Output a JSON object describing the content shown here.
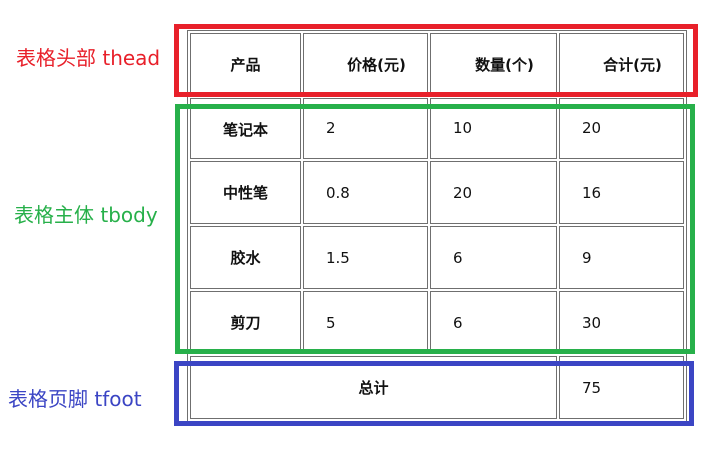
{
  "labels": {
    "thead": "表格头部 thead",
    "tbody": "表格主体 tbody",
    "tfoot": "表格页脚 tfoot"
  },
  "colors": {
    "thead": "#e8202a",
    "tbody": "#27b04a",
    "tfoot": "#3b45c4"
  },
  "table": {
    "headers": [
      "产品",
      "价格(元)",
      "数量(个)",
      "合计(元)"
    ],
    "rows": [
      [
        "笔记本",
        "2",
        "10",
        "20"
      ],
      [
        "中性笔",
        "0.8",
        "20",
        "16"
      ],
      [
        "胶水",
        "1.5",
        "6",
        "9"
      ],
      [
        "剪刀",
        "5",
        "6",
        "30"
      ]
    ],
    "footer": {
      "label": "总计",
      "total": "75"
    }
  }
}
